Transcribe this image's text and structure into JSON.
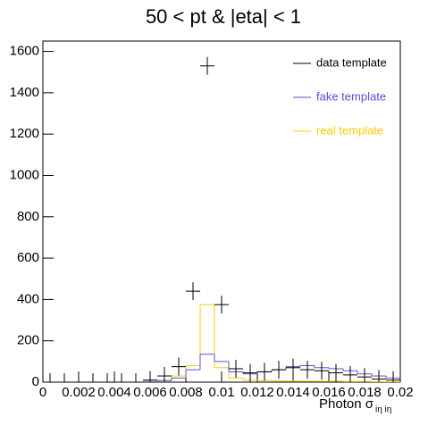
{
  "chart_data": {
    "type": "histogram",
    "title": "50 < pt & |eta| < 1",
    "x_label": "Photon σ",
    "x_label_sub": "iη iη",
    "bins": [
      0,
      0.0008,
      0.0016,
      0.0024,
      0.0032,
      0.004,
      0.0048,
      0.0056,
      0.0064,
      0.0072,
      0.008,
      0.0088,
      0.0096,
      0.0104,
      0.0112,
      0.012,
      0.0128,
      0.0136,
      0.0144,
      0.0152,
      0.016,
      0.0168,
      0.0176,
      0.0184,
      0.0192,
      0.02
    ],
    "series": [
      {
        "name": "data template",
        "color": "#000000",
        "draw": "markers",
        "values": [
          0,
          0,
          0,
          0,
          0,
          0,
          0,
          10,
          30,
          75,
          440,
          1530,
          375,
          65,
          45,
          50,
          60,
          70,
          60,
          55,
          45,
          35,
          25,
          15,
          10
        ]
      },
      {
        "name": "fake template",
        "color": "#5a4fd0",
        "draw": "step",
        "values": [
          0,
          0,
          0,
          0,
          0,
          0,
          0,
          3,
          8,
          20,
          60,
          135,
          100,
          50,
          40,
          50,
          60,
          75,
          80,
          70,
          65,
          55,
          40,
          30,
          20
        ]
      },
      {
        "name": "real template",
        "color": "#ffcc00",
        "draw": "step",
        "values": [
          0,
          0,
          0,
          0,
          0,
          0,
          0,
          2,
          8,
          30,
          80,
          375,
          70,
          20,
          10,
          8,
          6,
          5,
          5,
          4,
          4,
          3,
          3,
          2,
          2
        ]
      }
    ],
    "xlim": [
      0,
      0.02
    ],
    "xticks": [
      0,
      0.002,
      0.004,
      0.006,
      0.008,
      0.01,
      0.012,
      0.014,
      0.016,
      0.018,
      0.02
    ],
    "ylim": [
      0,
      1650
    ],
    "yticks": [
      0,
      200,
      400,
      600,
      800,
      1000,
      1200,
      1400,
      1600
    ],
    "legend": "top-right"
  }
}
